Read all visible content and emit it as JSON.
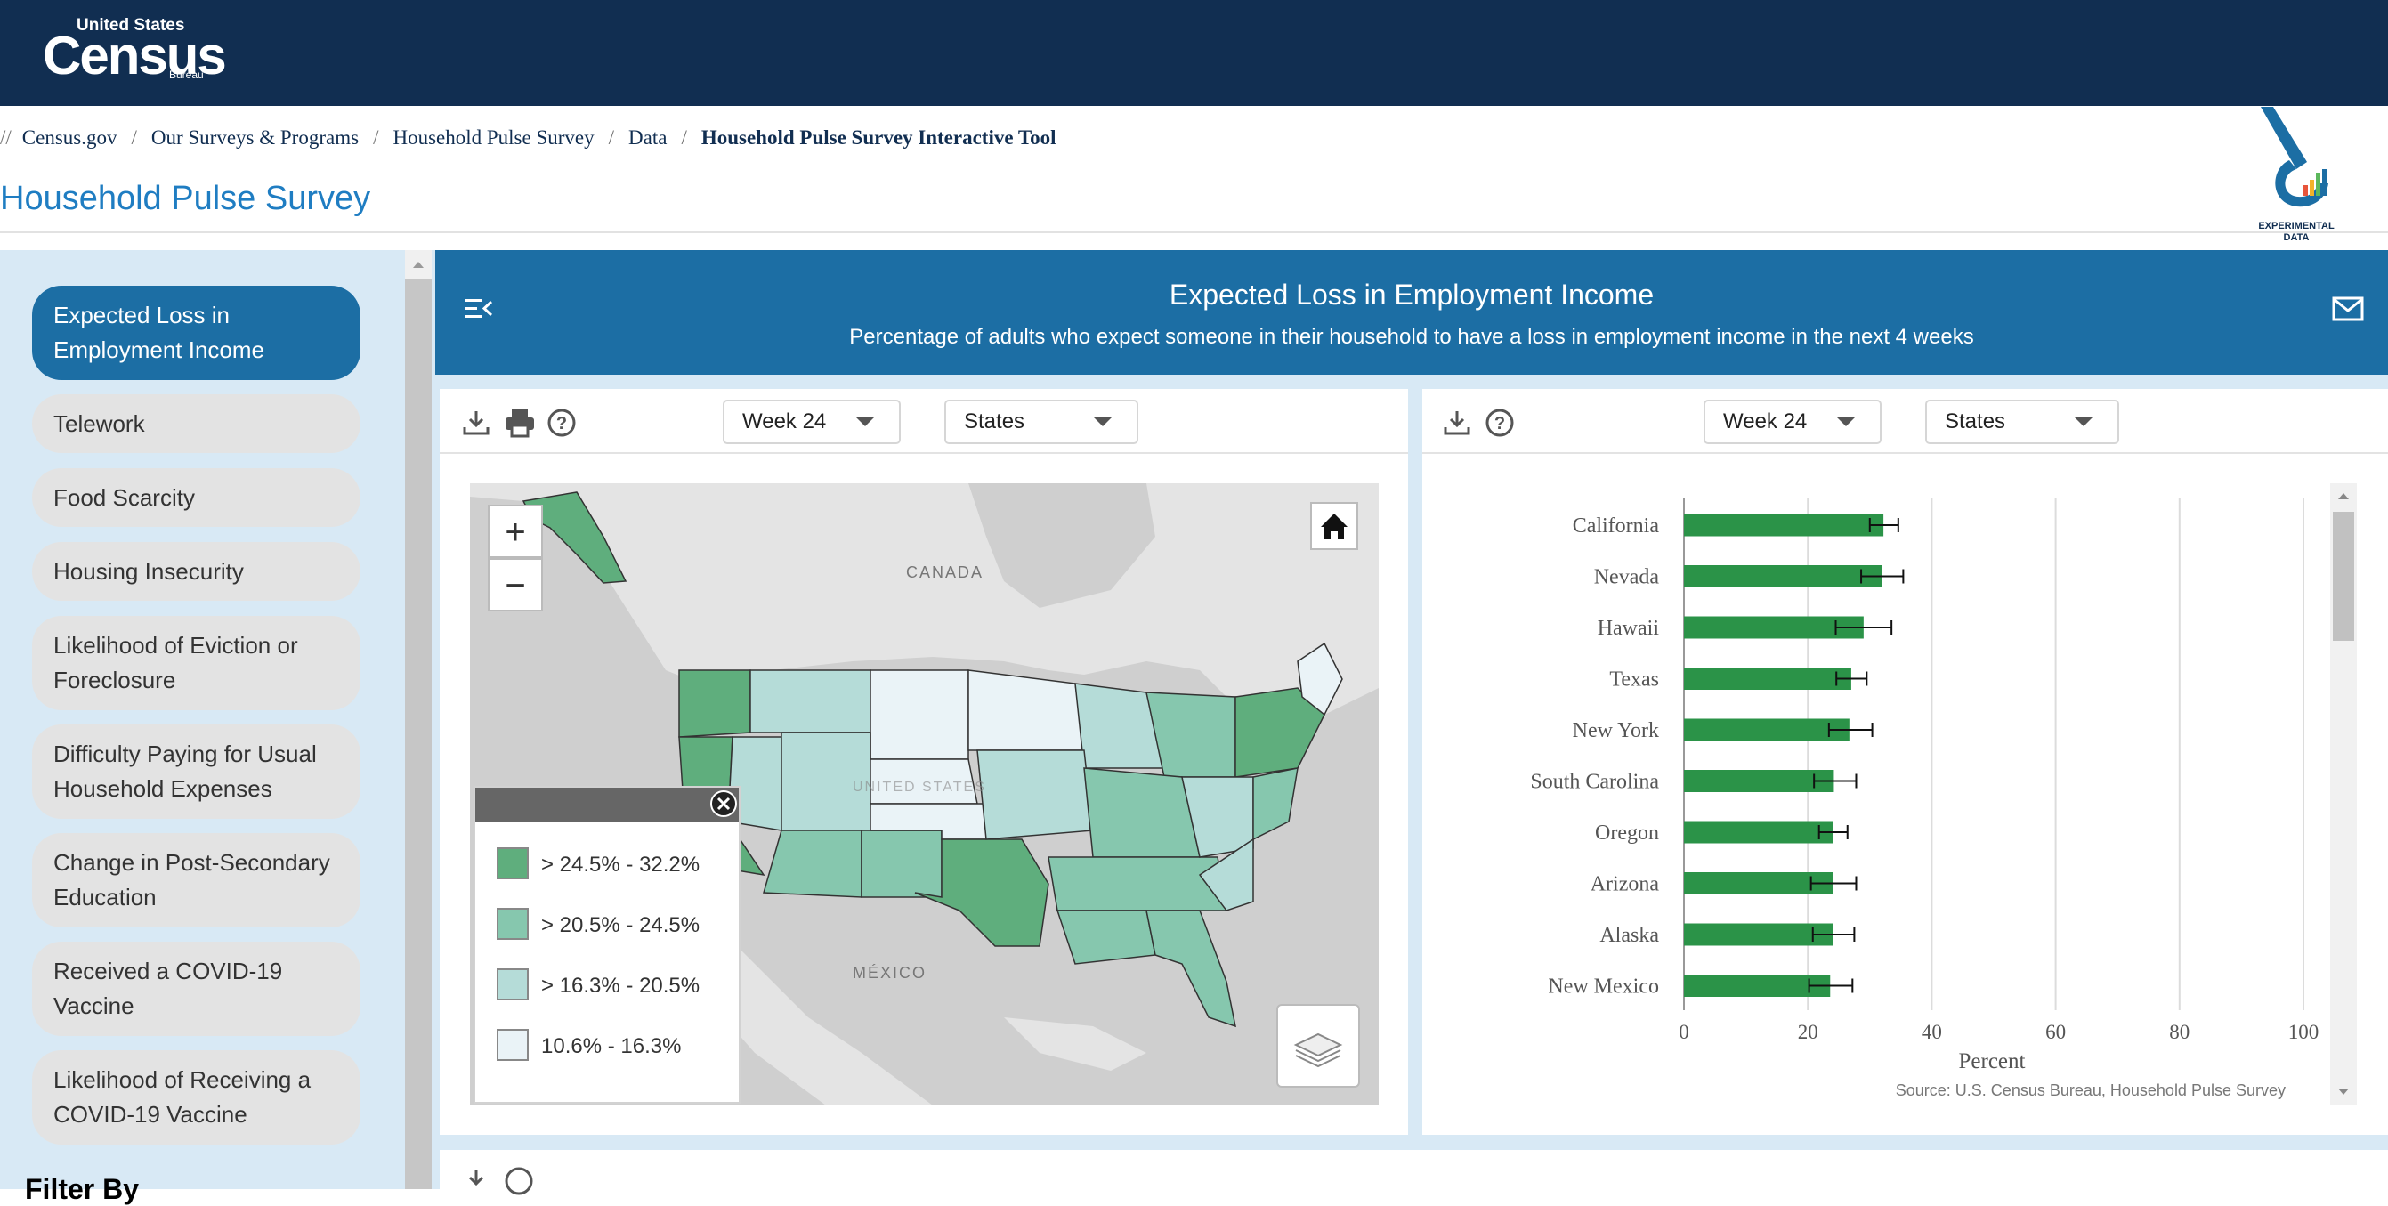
{
  "header": {
    "logo_small": "United States",
    "logo_big": "Census",
    "logo_tiny": "Bureau",
    "bg_color": "#112e51"
  },
  "breadcrumb": {
    "lead": "//",
    "items": [
      "Census.gov",
      "Our Surveys & Programs",
      "Household Pulse Survey",
      "Data"
    ],
    "current": "Household Pulse Survey Interactive Tool",
    "separator": "/"
  },
  "page": {
    "title": "Household Pulse Survey",
    "badge_line1": "EXPERIMENTAL",
    "badge_line2": "DATA"
  },
  "sidebar": {
    "items": [
      {
        "label": "Expected Loss in Employment Income",
        "active": true
      },
      {
        "label": "Telework",
        "active": false
      },
      {
        "label": "Food Scarcity",
        "active": false
      },
      {
        "label": "Housing Insecurity",
        "active": false
      },
      {
        "label": "Likelihood of Eviction or Foreclosure",
        "active": false
      },
      {
        "label": "Difficulty Paying for Usual Household Expenses",
        "active": false
      },
      {
        "label": "Change in Post-Secondary Education",
        "active": false
      },
      {
        "label": "Received a COVID-19 Vaccine",
        "active": false
      },
      {
        "label": "Likelihood of Receiving a COVID-19 Vaccine",
        "active": false
      }
    ],
    "filter_label": "Filter By"
  },
  "banner": {
    "title": "Expected Loss in Employment Income",
    "subtitle": "Percentage of adults who expect someone in their household to have a loss in employment income in the next 4 weeks",
    "color": "#1c6ea4"
  },
  "map_panel": {
    "week_select": "Week 24",
    "geo_select": "States",
    "labels": {
      "canada": "CANADA",
      "mexico": "MÉXICO",
      "us": "UNITED STATES"
    },
    "zoom_in": "+",
    "zoom_out": "−",
    "legend": [
      {
        "label": "> 24.5% - 32.2%",
        "color": "#5fae7d"
      },
      {
        "label": "> 20.5% - 24.5%",
        "color": "#86c7ae"
      },
      {
        "label": "> 16.3% - 20.5%",
        "color": "#b5dcd8"
      },
      {
        "label": "10.6% - 16.3%",
        "color": "#eaf3f7"
      }
    ]
  },
  "chart_panel": {
    "week_select": "Week 24",
    "geo_select": "States",
    "source": "Source: U.S. Census Bureau, Household Pulse Survey"
  },
  "chart_data": {
    "type": "bar",
    "orientation": "horizontal",
    "categories": [
      "California",
      "Nevada",
      "Hawaii",
      "Texas",
      "New York",
      "South Carolina",
      "Oregon",
      "Arizona",
      "Alaska",
      "New Mexico"
    ],
    "values": [
      32.2,
      32.0,
      29.0,
      27.0,
      26.7,
      24.2,
      24.0,
      24.0,
      24.0,
      23.6
    ],
    "error_low": [
      30.0,
      28.6,
      24.5,
      24.6,
      23.4,
      21.0,
      21.8,
      20.5,
      20.8,
      20.2
    ],
    "error_high": [
      34.6,
      35.4,
      33.5,
      29.5,
      30.4,
      27.8,
      26.4,
      27.8,
      27.5,
      27.2
    ],
    "xlabel": "Percent",
    "xlim": [
      0,
      100
    ],
    "xticks": [
      0,
      20,
      40,
      60,
      80,
      100
    ],
    "bar_color": "#2b9348",
    "grid": true
  }
}
